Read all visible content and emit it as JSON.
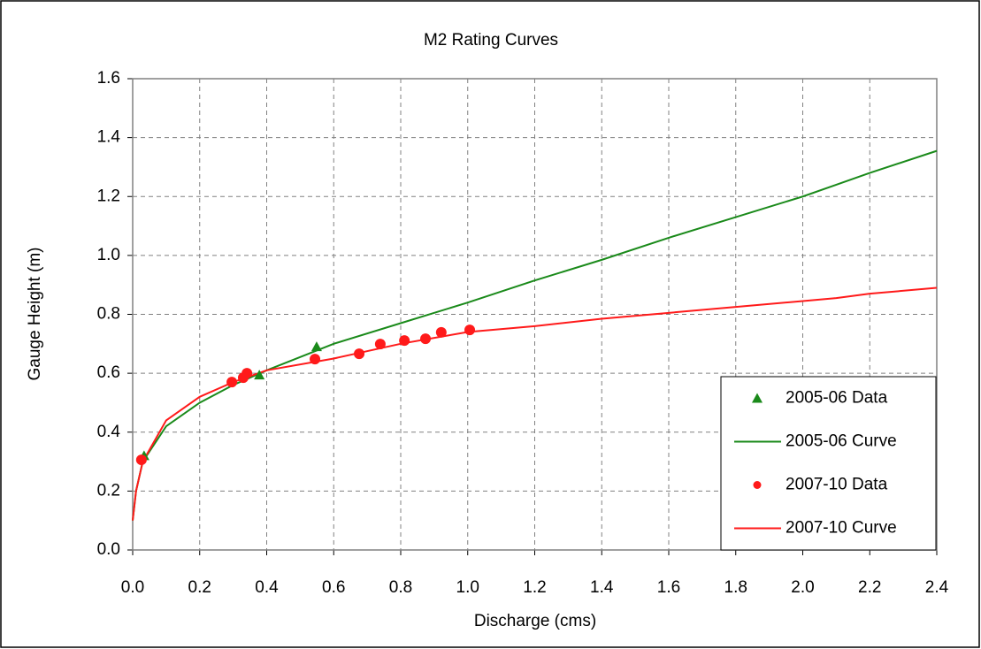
{
  "chart_data": {
    "type": "scatter",
    "title": "M2 Rating Curves",
    "x_label": "Discharge (cms)",
    "y_label": "Gauge Height (m)",
    "xlim": [
      0,
      2.4
    ],
    "ylim": [
      0,
      1.6
    ],
    "xticks": [
      {
        "value": 0,
        "label": "0.0"
      },
      0.2,
      0.4,
      0.6,
      0.8,
      {
        "value": 1,
        "label": "1.0"
      },
      1.2,
      1.4,
      1.6,
      1.8,
      {
        "value": 2,
        "label": "2.0"
      },
      2.2,
      2.4
    ],
    "yticks": [
      {
        "value": 0,
        "label": "0.0"
      },
      0.2,
      0.4,
      0.6,
      0.8,
      {
        "value": 1,
        "label": "1.0"
      },
      1.2,
      1.4,
      1.6
    ],
    "grid": true,
    "legend": "lower right",
    "series": [
      {
        "name": "2005-06 Data",
        "mode": "markers",
        "marker": "triangle",
        "color": "#1a8a1a",
        "x": [
          0.034,
          0.378,
          0.549
        ],
        "y": [
          0.32,
          0.594,
          0.69
        ]
      },
      {
        "name": "2005-06 Curve",
        "mode": "lines",
        "color": "#1a8a1a",
        "x": [
          0,
          0.01,
          0.03,
          0.1,
          0.2,
          0.3,
          0.4,
          0.6,
          0.8,
          1.0,
          1.2,
          1.4,
          1.6,
          1.8,
          2.0,
          2.1,
          2.2,
          2.4
        ],
        "y": [
          0.1,
          0.2,
          0.3,
          0.42,
          0.5,
          0.56,
          0.61,
          0.7,
          0.77,
          0.84,
          0.915,
          0.985,
          1.06,
          1.13,
          1.2,
          1.24,
          1.28,
          1.355
        ]
      },
      {
        "name": "2007-10 Data",
        "mode": "markers",
        "marker": "circle",
        "color": "#ff1a1a",
        "x": [
          0.026,
          0.296,
          0.33,
          0.341,
          0.544,
          0.676,
          0.739,
          0.811,
          0.874,
          0.921,
          1.006
        ],
        "y": [
          0.306,
          0.57,
          0.585,
          0.6,
          0.648,
          0.666,
          0.699,
          0.711,
          0.717,
          0.739,
          0.747
        ]
      },
      {
        "name": "2007-10 Curve",
        "mode": "lines",
        "color": "#ff1a1a",
        "x": [
          0,
          0.01,
          0.03,
          0.1,
          0.2,
          0.3,
          0.4,
          0.6,
          0.8,
          1.0,
          1.2,
          1.4,
          1.6,
          1.8,
          2.0,
          2.1,
          2.2,
          2.4
        ],
        "y": [
          0.1,
          0.2,
          0.3,
          0.44,
          0.52,
          0.57,
          0.61,
          0.65,
          0.7,
          0.74,
          0.76,
          0.785,
          0.805,
          0.825,
          0.845,
          0.855,
          0.87,
          0.89
        ]
      }
    ]
  }
}
